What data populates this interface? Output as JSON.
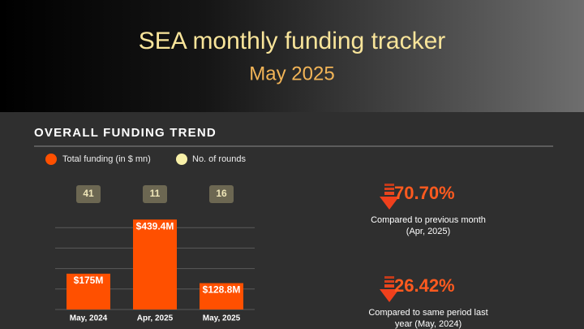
{
  "header": {
    "title": "SEA monthly funding tracker",
    "subtitle": "May 2025"
  },
  "chart_data": {
    "type": "bar",
    "title": "OVERALL FUNDING TREND",
    "categories": [
      "May, 2024",
      "Apr, 2025",
      "May, 2025"
    ],
    "series": [
      {
        "name": "Total funding (in $ mn)",
        "color": "#ff5000",
        "values": [
          175,
          439.4,
          128.8
        ],
        "value_labels": [
          "$175M",
          "$439.4M",
          "$128.8M"
        ]
      },
      {
        "name": "No. of rounds",
        "color": "#f8f0a8",
        "values": [
          41,
          11,
          16
        ]
      }
    ],
    "ylim": [
      0,
      500
    ],
    "yticks": [
      0,
      100,
      200,
      300,
      400
    ],
    "grid": true
  },
  "stats": [
    {
      "value": "70.70%",
      "caption": [
        "Compared to previous month",
        "(Apr, 2025)"
      ]
    },
    {
      "value": "26.42%",
      "caption": [
        "Compared to same period last",
        "year (May, 2024)"
      ]
    }
  ]
}
